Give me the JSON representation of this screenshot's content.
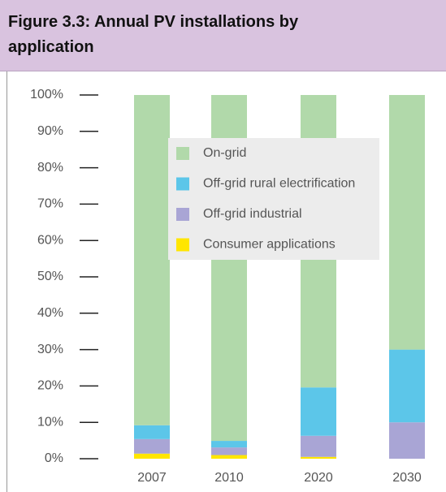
{
  "chart_data": {
    "type": "stacked_bar",
    "title": "Figure 3.3: Annual PV installations by application",
    "categories": [
      "2007",
      "2010",
      "2020",
      "2030"
    ],
    "series": [
      {
        "name": "On-grid",
        "color": "#b1d9aa",
        "values": [
          90.8,
          95.1,
          80.4,
          70
        ]
      },
      {
        "name": "Off-grid rural electrification",
        "color": "#5cc6e9",
        "values": [
          3.8,
          1.8,
          13.3,
          20
        ]
      },
      {
        "name": "Off-grid industrial",
        "color": "#a9a5d5",
        "values": [
          4,
          2.1,
          5.8,
          10
        ]
      },
      {
        "name": "Consumer applications",
        "color": "#ffe600",
        "values": [
          1.4,
          1,
          0.5,
          0
        ]
      }
    ],
    "ylim": [
      0,
      100
    ],
    "yticks": [
      {
        "value": 0,
        "label": "0%"
      },
      {
        "value": 10,
        "label": "10%"
      },
      {
        "value": 20,
        "label": "20%"
      },
      {
        "value": 30,
        "label": "30%"
      },
      {
        "value": 40,
        "label": "40%"
      },
      {
        "value": 50,
        "label": "50%"
      },
      {
        "value": 60,
        "label": "60%"
      },
      {
        "value": 70,
        "label": "70%"
      },
      {
        "value": 80,
        "label": "80%"
      },
      {
        "value": 90,
        "label": "90%"
      },
      {
        "value": 100,
        "label": "100%"
      }
    ]
  }
}
